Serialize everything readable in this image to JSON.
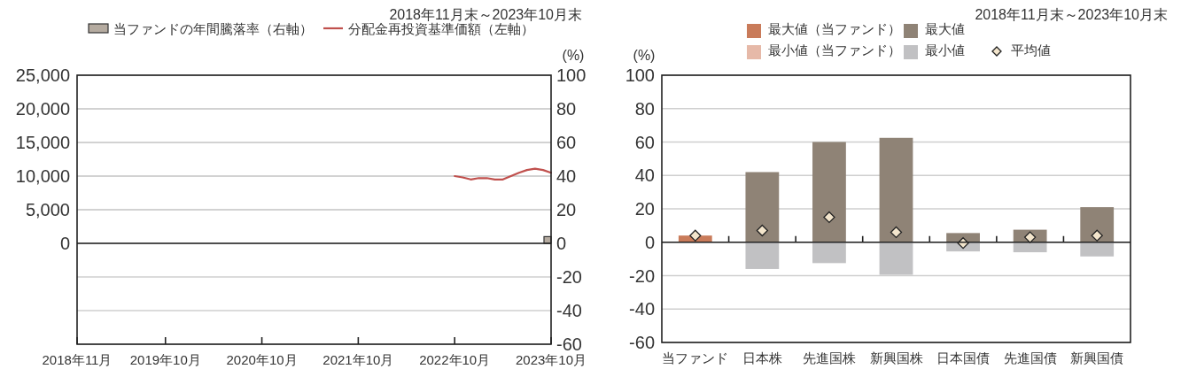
{
  "chart_data": [
    {
      "type": "line",
      "title": "2018年11月末～2023年10月末",
      "y2label": "(%)",
      "xlim": [
        "2018-11",
        "2023-10"
      ],
      "xticks": [
        {
          "value": "2018-11",
          "label": "2018年11月"
        },
        {
          "value": "2019-10",
          "label": "2019年10月"
        },
        {
          "value": "2020-10",
          "label": "2020年10月"
        },
        {
          "value": "2021-10",
          "label": "2021年10月"
        },
        {
          "value": "2022-10",
          "label": "2022年10月"
        },
        {
          "value": "2023-10",
          "label": "2023年10月"
        }
      ],
      "ylim": [
        -15000,
        25000
      ],
      "yticks": [
        {
          "value": 0,
          "label": "0"
        },
        {
          "value": 5000,
          "label": "5,000"
        },
        {
          "value": 10000,
          "label": "10,000"
        },
        {
          "value": 15000,
          "label": "15,000"
        },
        {
          "value": 20000,
          "label": "20,000"
        },
        {
          "value": 25000,
          "label": "25,000"
        }
      ],
      "y2lim": [
        -60,
        100
      ],
      "y2ticks": [
        -60,
        -40,
        -20,
        0,
        20,
        40,
        60,
        80,
        100
      ],
      "grid": true,
      "legend": "top",
      "series": [
        {
          "name": "当ファンドの年間騰落率（右軸）",
          "type": "bar",
          "axis": "y2",
          "color": "#b5aba0",
          "x": [
            "2023-10"
          ],
          "values": [
            4
          ]
        },
        {
          "name": "分配金再投資基準価額（左軸）",
          "color": "#c0504d",
          "x": [
            "2022-10",
            "2022-11",
            "2022-12",
            "2023-01",
            "2023-02",
            "2023-03",
            "2023-04",
            "2023-05",
            "2023-06",
            "2023-07",
            "2023-08",
            "2023-09",
            "2023-10"
          ],
          "values": [
            10000,
            9800,
            9500,
            9700,
            9700,
            9500,
            9500,
            10000,
            10500,
            10900,
            11100,
            10900,
            10500
          ]
        }
      ]
    },
    {
      "type": "bar",
      "title": "2018年11月末～2023年10月末",
      "ylabel": "(%)",
      "categories": [
        "当ファンド",
        "日本株",
        "先進国株",
        "新興国株",
        "日本国債",
        "先進国債",
        "新興国債"
      ],
      "ylim": [
        -60,
        100
      ],
      "yticks": [
        -60,
        -40,
        -20,
        0,
        20,
        40,
        60,
        80,
        100
      ],
      "grid": "y",
      "legend": "top",
      "stacked": true,
      "series": [
        {
          "name": "最大値（当ファンド）",
          "color": "#c97b5a",
          "values": [
            4,
            null,
            null,
            null,
            null,
            null,
            null
          ]
        },
        {
          "name": "最大値",
          "color": "#8f8376",
          "values": [
            null,
            42,
            60,
            62.5,
            5.5,
            7.5,
            21
          ]
        },
        {
          "name": "最小値（当ファンド）",
          "color": "#e6b9a8",
          "values": [
            null,
            null,
            null,
            null,
            null,
            null,
            null
          ]
        },
        {
          "name": "最小値",
          "color": "#c1c1c3",
          "values": [
            null,
            -16,
            -12.5,
            -19.5,
            -5.5,
            -6,
            -8.5
          ]
        },
        {
          "name": "平均値",
          "type": "scatter",
          "marker": "diamond",
          "color": "#f3e5cc",
          "values": [
            4,
            7,
            15,
            6,
            -0.5,
            3,
            4
          ]
        }
      ]
    }
  ]
}
